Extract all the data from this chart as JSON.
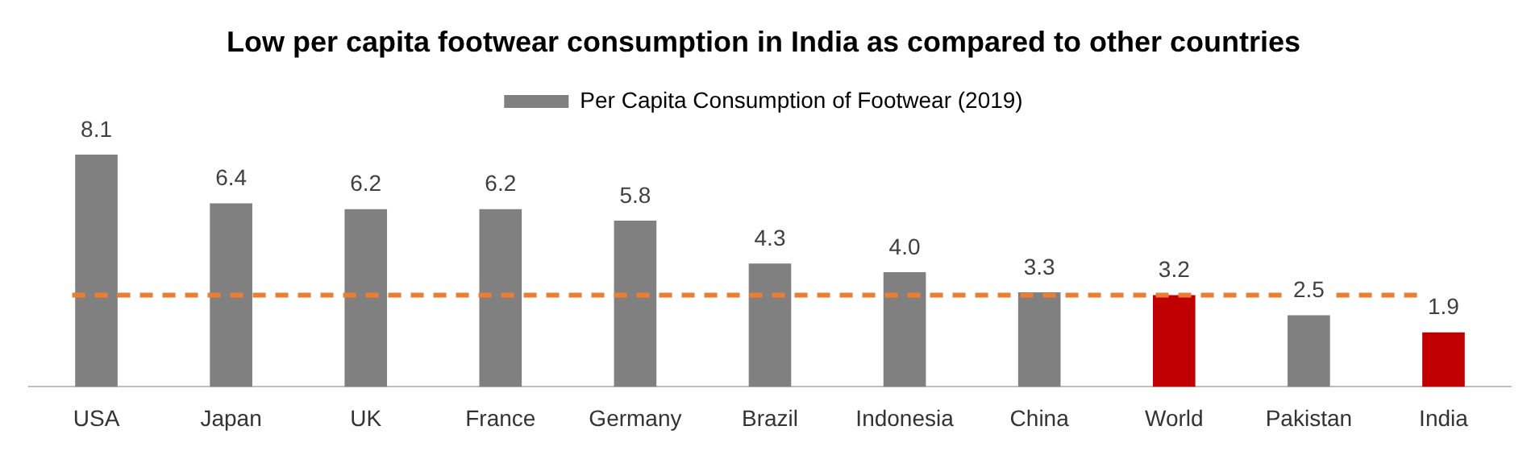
{
  "chart_data": {
    "type": "bar",
    "title": "Low per capita footwear consumption in India as compared to other countries",
    "categories": [
      "USA",
      "Japan",
      "UK",
      "France",
      "Germany",
      "Brazil",
      "Indonesia",
      "China",
      "World",
      "Pakistan",
      "India"
    ],
    "series": [
      {
        "name": "Per Capita Consumption of Footwear (2019)",
        "color": "#808080",
        "colors": [
          "#808080",
          "#808080",
          "#808080",
          "#808080",
          "#808080",
          "#808080",
          "#808080",
          "#808080",
          "#c00000",
          "#808080",
          "#c00000"
        ],
        "values": [
          8.1,
          6.4,
          6.2,
          6.2,
          5.8,
          4.3,
          4.0,
          3.3,
          3.2,
          2.5,
          1.9
        ],
        "value_labels": [
          "8.1",
          "6.4",
          "6.2",
          "6.2",
          "5.8",
          "4.3",
          "4.0",
          "3.3",
          "3.2",
          "2.5",
          "1.9"
        ]
      }
    ],
    "ref_lines": [
      {
        "axis": "y",
        "value": 3.2,
        "color": "#ed7d31",
        "line_style": "dashed"
      }
    ],
    "legend": "top",
    "grid": false,
    "relative": false
  }
}
